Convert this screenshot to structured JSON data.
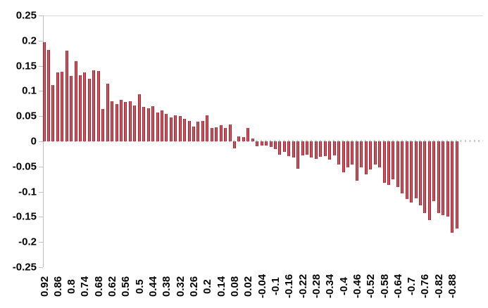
{
  "chart_data": {
    "type": "bar",
    "title": "",
    "xlabel": "",
    "ylabel": "",
    "ylim": [
      -0.25,
      0.25
    ],
    "y_tick_step": 0.05,
    "y_tick_labels": [
      "0.25",
      "0.2",
      "0.15",
      "0.1",
      "0.05",
      "0",
      "-0.05",
      "-0.1",
      "-0.15",
      "-0.2",
      "-0.25"
    ],
    "x_tick_labels": [
      "0.92",
      "0.86",
      "0.8",
      "0.74",
      "0.68",
      "0.62",
      "0.56",
      "0.5",
      "0.44",
      "0.38",
      "0.32",
      "0.26",
      "0.2",
      "0.14",
      "0.08",
      "0.02",
      "-0.04",
      "-0.1",
      "-0.16",
      "-0.22",
      "-0.28",
      "-0.34",
      "-0.4",
      "-0.46",
      "-0.52",
      "-0.58",
      "-0.64",
      "-0.7",
      "-0.76",
      "-0.82",
      "-0.88"
    ],
    "x_tick_every": 3,
    "grid": "top-border-and-zero-line-only",
    "legend": "none",
    "values": [
      0.197,
      0.181,
      0.112,
      0.137,
      0.138,
      0.18,
      0.13,
      0.159,
      0.131,
      0.137,
      0.125,
      0.141,
      0.14,
      0.064,
      0.115,
      0.079,
      0.074,
      0.083,
      0.078,
      0.08,
      0.071,
      0.094,
      0.069,
      0.066,
      0.07,
      0.057,
      0.061,
      0.054,
      0.048,
      0.052,
      0.05,
      0.044,
      0.04,
      0.03,
      0.039,
      0.041,
      0.051,
      0.026,
      0.028,
      0.032,
      0.027,
      0.033,
      -0.014,
      0.01,
      0.008,
      0.027,
      0.005,
      -0.01,
      -0.008,
      -0.008,
      -0.011,
      -0.015,
      -0.027,
      -0.021,
      -0.03,
      -0.032,
      -0.055,
      -0.028,
      -0.027,
      -0.032,
      -0.035,
      -0.031,
      -0.03,
      -0.037,
      -0.028,
      -0.046,
      -0.062,
      -0.051,
      -0.046,
      -0.078,
      -0.051,
      -0.065,
      -0.056,
      -0.046,
      -0.051,
      -0.082,
      -0.086,
      -0.075,
      -0.091,
      -0.103,
      -0.114,
      -0.122,
      -0.113,
      -0.127,
      -0.143,
      -0.157,
      -0.119,
      -0.143,
      -0.147,
      -0.15,
      -0.182,
      -0.173
    ],
    "colors": {
      "bar_fill": "#C93845",
      "bar_edge": "#A12531",
      "bar_highlight": "#EFA6AB",
      "axis": "#BFBFBF",
      "top_border": "#D9D9D9",
      "zero_line": "#C8C8C8",
      "label_text": "#000000",
      "background": "#FFFFFF"
    }
  }
}
